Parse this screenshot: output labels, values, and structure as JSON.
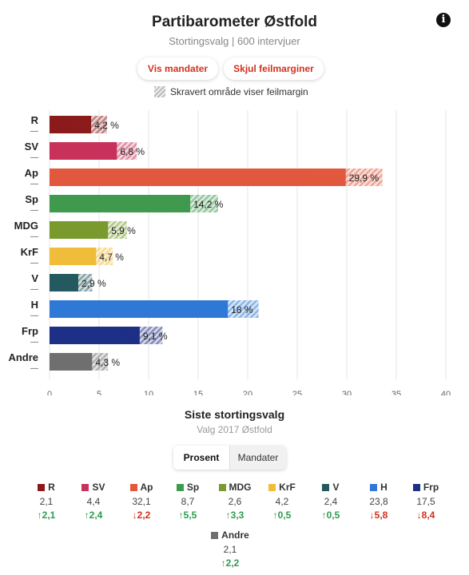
{
  "header": {
    "title": "Partibarometer Østfold",
    "subtitle": "Stortingsvalg | 600 intervjuer",
    "info_icon": "i"
  },
  "buttons": {
    "show_seats": "Vis mandater",
    "hide_margins": "Skjul feilmarginer"
  },
  "legend_note": "Skravert område viser feilmargin",
  "chart_data": {
    "type": "bar",
    "orientation": "horizontal",
    "categories": [
      "R",
      "SV",
      "Ap",
      "Sp",
      "MDG",
      "KrF",
      "V",
      "H",
      "Frp",
      "Andre"
    ],
    "values": [
      4.2,
      6.8,
      29.9,
      14.2,
      5.9,
      4.7,
      2.9,
      18,
      9.1,
      4.3
    ],
    "value_labels": [
      "4,2 %",
      "6,8 %",
      "29,9 %",
      "14,2 %",
      "5,9 %",
      "4,7 %",
      "2,9 %",
      "18 %",
      "9,1 %",
      "4,3 %"
    ],
    "error_margin": [
      1.6,
      2.0,
      3.7,
      2.8,
      1.9,
      1.7,
      1.4,
      3.1,
      2.3,
      1.6
    ],
    "colors": [
      "#8b1a1a",
      "#c8315a",
      "#e2583e",
      "#3f9a4e",
      "#7a9a2e",
      "#f0bd3a",
      "#24595f",
      "#2f78d6",
      "#1d2f86",
      "#6f6f6f"
    ],
    "seat_markers": [
      "—",
      "—",
      "—",
      "—",
      "—",
      "—",
      "—",
      "—",
      "—",
      "—"
    ],
    "xlim": [
      0,
      40
    ],
    "xticks": [
      0,
      5,
      10,
      15,
      20,
      25,
      30,
      35,
      40
    ],
    "grid": true,
    "legend": "top-center"
  },
  "previous": {
    "title": "Siste stortingsvalg",
    "subtitle": "Valg 2017 Østfold",
    "tabs": {
      "percent": "Prosent",
      "seats": "Mandater"
    },
    "parties": [
      {
        "name": "R",
        "color": "#8b1a1a",
        "value": "2,1",
        "change": "2,1",
        "dir": "up"
      },
      {
        "name": "SV",
        "color": "#c8315a",
        "value": "4,4",
        "change": "2,4",
        "dir": "up"
      },
      {
        "name": "Ap",
        "color": "#e2583e",
        "value": "32,1",
        "change": "2,2",
        "dir": "down"
      },
      {
        "name": "Sp",
        "color": "#3f9a4e",
        "value": "8,7",
        "change": "5,5",
        "dir": "up"
      },
      {
        "name": "MDG",
        "color": "#7a9a2e",
        "value": "2,6",
        "change": "3,3",
        "dir": "up"
      },
      {
        "name": "KrF",
        "color": "#f0bd3a",
        "value": "4,2",
        "change": "0,5",
        "dir": "up"
      },
      {
        "name": "V",
        "color": "#24595f",
        "value": "2,4",
        "change": "0,5",
        "dir": "up"
      },
      {
        "name": "H",
        "color": "#2f78d6",
        "value": "23,8",
        "change": "5,8",
        "dir": "down"
      },
      {
        "name": "Frp",
        "color": "#1d2f86",
        "value": "17,5",
        "change": "8,4",
        "dir": "down"
      },
      {
        "name": "Andre",
        "color": "#6f6f6f",
        "value": "2,1",
        "change": "2,2",
        "dir": "up"
      }
    ]
  }
}
